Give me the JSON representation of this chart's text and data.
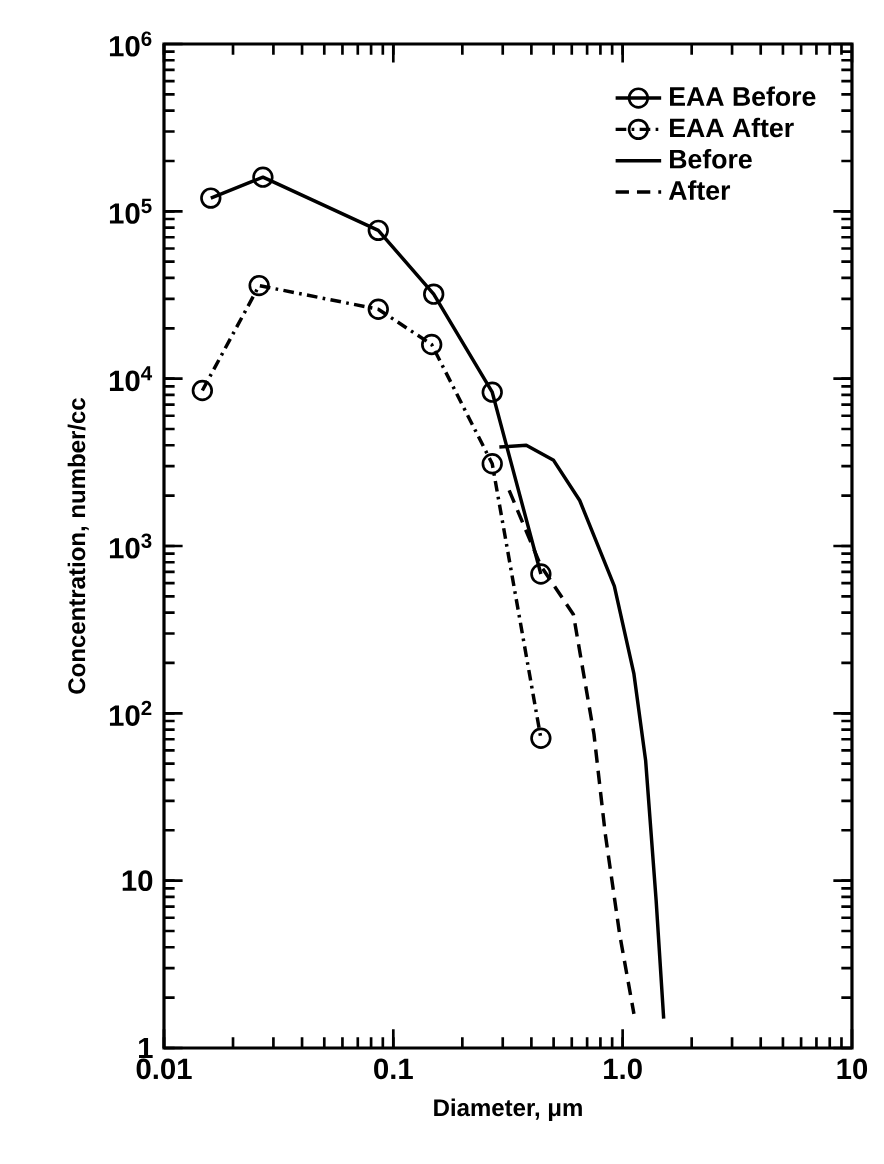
{
  "chart_data": {
    "type": "line",
    "xlabel": "Diameter, μm",
    "ylabel": "Concentration, number/cc",
    "log": "xy",
    "xlim": [
      0.01,
      10
    ],
    "ylim": [
      1,
      1000000
    ],
    "xticks": [
      0.01,
      0.1,
      {
        "value": 1,
        "label": "1.0"
      },
      10
    ],
    "yticks": [
      1,
      10,
      {
        "value": 100,
        "label": "10$^{2}$"
      },
      {
        "value": 1000,
        "label": "10$^{3}$"
      },
      {
        "value": 10000,
        "label": "10$^{4}$"
      },
      {
        "value": 100000,
        "label": "10$^{5}$"
      },
      {
        "value": 1000000,
        "label": "10$^{6}$"
      }
    ],
    "legend": "top right",
    "grid": false,
    "series": [
      {
        "name": "EAA Before",
        "color": "#000000",
        "marker": "circle",
        "line_style": "solid",
        "x": [
          0.016,
          0.027,
          0.086,
          0.15,
          0.27,
          0.44
        ],
        "values": [
          120000,
          160000,
          77000,
          32000,
          8300,
          680
        ]
      },
      {
        "name": "EAA After",
        "color": "#000000",
        "marker": "circle",
        "line_style": "dashdot",
        "x": [
          0.0147,
          0.026,
          0.086,
          0.147,
          0.27,
          0.44
        ],
        "values": [
          8500,
          36000,
          26000,
          16000,
          3100,
          71
        ]
      },
      {
        "name": "Before",
        "color": "#000000",
        "marker": "none",
        "line_style": "solid",
        "x": [
          0.29,
          0.38,
          0.5,
          0.65,
          0.92,
          1.12,
          1.26,
          1.4,
          1.51
        ],
        "values": [
          3900,
          4000,
          3250,
          1870,
          575,
          172,
          52,
          7.6,
          1.5
        ]
      },
      {
        "name": "After",
        "color": "#000000",
        "marker": "none",
        "line_style": "dashed",
        "x": [
          0.32,
          0.44,
          0.61,
          0.75,
          0.84,
          0.97,
          1.12
        ],
        "values": [
          2150,
          760,
          390,
          75,
          19,
          4.8,
          1.6
        ]
      }
    ]
  }
}
